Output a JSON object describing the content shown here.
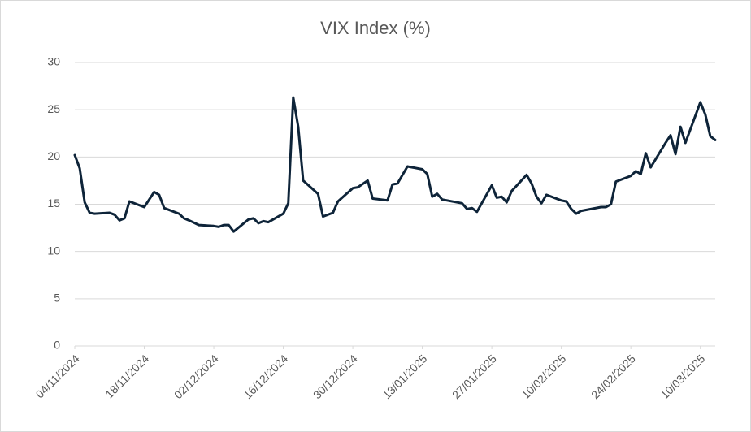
{
  "chart_data": {
    "type": "line",
    "title": "VIX Index (%)",
    "x": [
      "04/11/2024",
      "05/11/2024",
      "06/11/2024",
      "07/11/2024",
      "08/11/2024",
      "11/11/2024",
      "12/11/2024",
      "13/11/2024",
      "14/11/2024",
      "15/11/2024",
      "18/11/2024",
      "19/11/2024",
      "20/11/2024",
      "21/11/2024",
      "22/11/2024",
      "25/11/2024",
      "26/11/2024",
      "27/11/2024",
      "29/11/2024",
      "02/12/2024",
      "03/12/2024",
      "04/12/2024",
      "05/12/2024",
      "06/12/2024",
      "09/12/2024",
      "10/12/2024",
      "11/12/2024",
      "12/12/2024",
      "13/12/2024",
      "16/12/2024",
      "17/12/2024",
      "18/12/2024",
      "19/12/2024",
      "20/12/2024",
      "23/12/2024",
      "24/12/2024",
      "26/12/2024",
      "27/12/2024",
      "30/12/2024",
      "31/12/2024",
      "02/01/2025",
      "03/01/2025",
      "06/01/2025",
      "07/01/2025",
      "08/01/2025",
      "10/01/2025",
      "13/01/2025",
      "14/01/2025",
      "15/01/2025",
      "16/01/2025",
      "17/01/2025",
      "21/01/2025",
      "22/01/2025",
      "23/01/2025",
      "24/01/2025",
      "27/01/2025",
      "28/01/2025",
      "29/01/2025",
      "30/01/2025",
      "31/01/2025",
      "03/02/2025",
      "04/02/2025",
      "05/02/2025",
      "06/02/2025",
      "07/02/2025",
      "10/02/2025",
      "11/02/2025",
      "12/02/2025",
      "13/02/2025",
      "14/02/2025",
      "18/02/2025",
      "19/02/2025",
      "20/02/2025",
      "21/02/2025",
      "24/02/2025",
      "25/02/2025",
      "26/02/2025",
      "27/02/2025",
      "28/02/2025",
      "03/03/2025",
      "04/03/2025",
      "05/03/2025",
      "06/03/2025",
      "07/03/2025",
      "10/03/2025",
      "11/03/2025",
      "12/03/2025",
      "13/03/2025"
    ],
    "values": [
      20.2,
      18.8,
      15.2,
      14.1,
      14.0,
      14.1,
      13.9,
      13.3,
      13.5,
      15.3,
      14.7,
      15.5,
      16.3,
      16.0,
      14.6,
      14.0,
      13.5,
      13.3,
      12.8,
      12.7,
      12.6,
      12.8,
      12.8,
      12.1,
      13.4,
      13.5,
      13.0,
      13.2,
      13.1,
      14.0,
      15.1,
      26.3,
      23.2,
      17.5,
      16.1,
      13.7,
      14.1,
      15.3,
      16.7,
      16.8,
      17.5,
      15.6,
      15.4,
      17.1,
      17.2,
      19.0,
      18.7,
      18.2,
      15.8,
      16.1,
      15.5,
      15.1,
      14.5,
      14.6,
      14.2,
      17.0,
      15.7,
      15.8,
      15.2,
      16.4,
      18.1,
      17.2,
      15.8,
      15.1,
      16.0,
      15.4,
      15.3,
      14.5,
      14.0,
      14.3,
      14.7,
      14.7,
      15.0,
      17.4,
      18.0,
      18.5,
      18.2,
      20.4,
      18.9,
      21.5,
      22.3,
      20.3,
      23.2,
      21.5,
      25.8,
      24.5,
      22.2,
      21.8
    ],
    "color": "#0e2439",
    "xlim": [
      "04/11/2024",
      "13/03/2025"
    ],
    "xticks": [
      "04/11/2024",
      "18/11/2024",
      "02/12/2024",
      "16/12/2024",
      "30/12/2024",
      "13/01/2025",
      "27/01/2025",
      "10/02/2025",
      "24/02/2025",
      "10/03/2025"
    ],
    "ylim": [
      0,
      30
    ],
    "yticks": [
      0,
      5,
      10,
      15,
      20,
      25,
      30
    ],
    "grid": true
  }
}
